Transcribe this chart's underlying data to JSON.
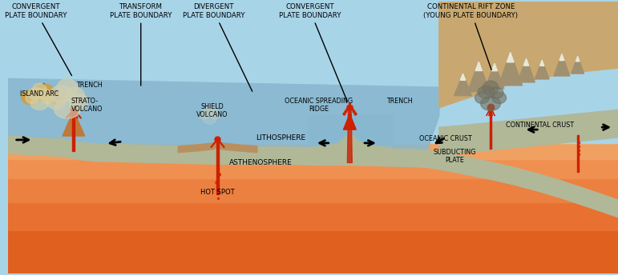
{
  "fig_width": 7.71,
  "fig_height": 3.44,
  "dpi": 100,
  "sky_color": "#A8D4E8",
  "ocean_color": "#88B8D0",
  "lith_color": "#B0B898",
  "asth_color_top": "#E87830",
  "asth_color_mid": "#E86820",
  "asth_color_bot": "#F09050",
  "hot_orange": "#F0A040",
  "hot_yellow": "#F8D080",
  "white_hot": "#FFFFFF",
  "cont_land_color": "#C8A870",
  "cont_land2": "#B89858",
  "mountain_color": "#A09070",
  "mountain_snow": "#E8E8D8",
  "island_color": "#C8A050",
  "volcano_color": "#C07838",
  "lava_color": "#CC2000",
  "smoke_color": "#C8C8B0",
  "dark_smoke": "#909080",
  "ocean_deep": "#6898B8",
  "labels": {
    "convergent_left": "CONVERGENT\nPLATE BOUNDARY",
    "transform": "TRANSFORM\nPLATE BOUNDARY",
    "divergent": "DIVERGENT\nPLATE BOUNDARY",
    "convergent_right": "CONVERGENT\nPLATE BOUNDARY",
    "continental_rift": "CONTINENTAL RIFT ZONE\n(YOUNG PLATE BOUNDARY)",
    "island_arc": "ISLAND ARC",
    "trench_left": "TRENCH",
    "shield_volcano": "SHIELD\nVOLCANO",
    "strato_volcano": "STRATO-\nVOLCANO",
    "oceanic_spreading": "OCEANIC SPREADING\nRIDGE",
    "trench_right": "TRENCH",
    "lithosphere": "LITHOSPHERE",
    "asthenosphere": "ASTHENOSPHERE",
    "hot_spot": "HOT SPOT",
    "oceanic_crust": "OCEANIC CRUST",
    "continental_crust": "CONTINENTAL CRUST",
    "subducting_plate": "SUBDUCTING\nPLATE"
  }
}
